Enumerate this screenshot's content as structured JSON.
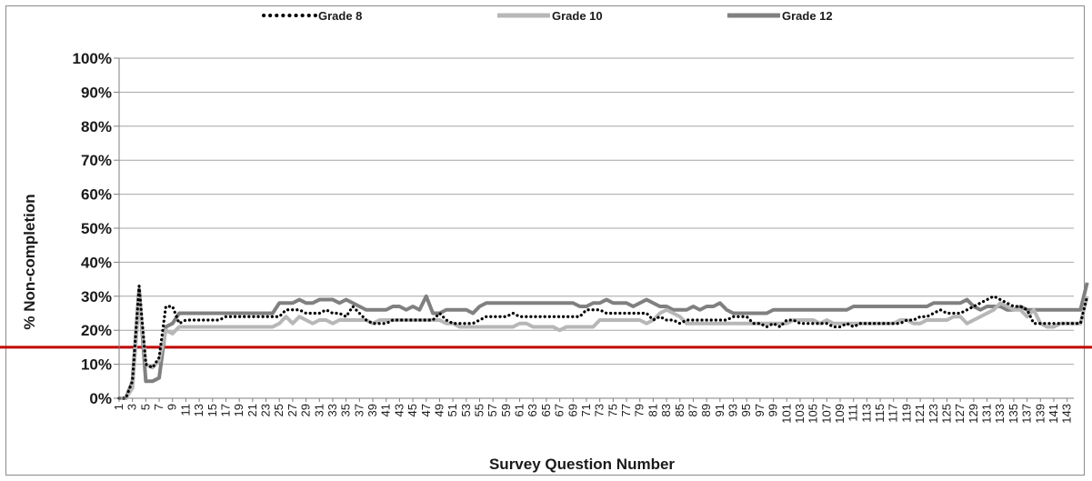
{
  "chart_data": {
    "type": "line",
    "title": "",
    "xlabel": "Survey Question Number",
    "ylabel": "% Non-completion",
    "ylim": [
      0,
      100
    ],
    "y_ticks": [
      "0%",
      "10%",
      "20%",
      "30%",
      "40%",
      "50%",
      "60%",
      "70%",
      "80%",
      "90%",
      "100%"
    ],
    "x_tick_labels": [
      1,
      3,
      5,
      7,
      9,
      11,
      13,
      15,
      17,
      19,
      21,
      23,
      25,
      27,
      29,
      31,
      33,
      35,
      37,
      39,
      41,
      43,
      45,
      47,
      49,
      51,
      53,
      55,
      57,
      59,
      61,
      63,
      65,
      67,
      69,
      71,
      73,
      75,
      77,
      79,
      81,
      83,
      85,
      87,
      89,
      91,
      93,
      95,
      97,
      99,
      101,
      103,
      105,
      107,
      109,
      111,
      113,
      115,
      117,
      119,
      121,
      123,
      125,
      127,
      129,
      131,
      133,
      135,
      137,
      139,
      141,
      143
    ],
    "x_range": [
      1,
      144
    ],
    "grid": "horizontal",
    "legend_position": "top",
    "reference_line": {
      "y": 15,
      "color": "#c00000"
    },
    "series": [
      {
        "name": "Grade 8",
        "color": "#000000",
        "style": "dotted",
        "values": [
          0,
          0,
          5,
          33,
          10,
          9,
          12,
          27,
          27,
          22,
          23,
          23,
          23,
          23,
          23,
          23,
          24,
          24,
          24,
          24,
          24,
          24,
          24,
          24,
          24,
          26,
          26,
          26,
          25,
          25,
          25,
          26,
          25,
          25,
          24,
          27,
          25,
          23,
          22,
          22,
          22,
          23,
          23,
          23,
          23,
          23,
          23,
          23,
          25,
          23,
          22,
          22,
          22,
          22,
          23,
          24,
          24,
          24,
          24,
          25,
          24,
          24,
          24,
          24,
          24,
          24,
          24,
          24,
          24,
          24,
          26,
          26,
          26,
          25,
          25,
          25,
          25,
          25,
          25,
          25,
          23,
          24,
          23,
          23,
          22,
          23,
          23,
          23,
          23,
          23,
          23,
          23,
          24,
          24,
          24,
          22,
          22,
          21,
          22,
          21,
          23,
          23,
          22,
          22,
          22,
          22,
          22,
          21,
          21,
          22,
          21,
          22,
          22,
          22,
          22,
          22,
          22,
          22,
          23,
          23,
          24,
          24,
          25,
          26,
          25,
          25,
          25,
          26,
          27,
          28,
          29,
          30,
          29,
          28,
          27,
          27,
          26,
          22,
          22,
          22,
          22,
          22,
          22,
          22,
          22,
          30
        ]
      },
      {
        "name": "Grade 10",
        "color": "#b7b7b7",
        "style": "solid",
        "values": [
          0,
          0,
          3,
          30,
          10,
          9,
          11,
          20,
          19,
          21,
          21,
          21,
          21,
          21,
          21,
          21,
          21,
          21,
          21,
          21,
          21,
          21,
          21,
          21,
          22,
          24,
          22,
          24,
          23,
          22,
          23,
          23,
          22,
          23,
          23,
          23,
          23,
          23,
          22,
          23,
          23,
          23,
          23,
          23,
          23,
          23,
          23,
          23,
          23,
          22,
          22,
          21,
          21,
          21,
          21,
          21,
          21,
          21,
          21,
          21,
          22,
          22,
          21,
          21,
          21,
          21,
          20,
          21,
          21,
          21,
          21,
          21,
          23,
          23,
          23,
          23,
          23,
          23,
          23,
          22,
          23,
          25,
          26,
          25,
          24,
          22,
          22,
          22,
          22,
          22,
          22,
          22,
          22,
          22,
          22,
          22,
          22,
          22,
          22,
          22,
          22,
          23,
          23,
          23,
          23,
          22,
          23,
          22,
          22,
          22,
          22,
          22,
          22,
          22,
          22,
          22,
          22,
          23,
          23,
          22,
          22,
          23,
          23,
          23,
          23,
          24,
          24,
          22,
          23,
          24,
          25,
          26,
          28,
          27,
          26,
          26,
          24,
          26,
          22,
          21,
          21,
          22,
          22,
          22,
          22,
          30
        ]
      },
      {
        "name": "Grade 12",
        "color": "#808080",
        "style": "solid",
        "values": [
          0,
          0,
          5,
          32,
          5,
          5,
          6,
          21,
          22,
          25,
          25,
          25,
          25,
          25,
          25,
          25,
          25,
          25,
          25,
          25,
          25,
          25,
          25,
          25,
          28,
          28,
          28,
          29,
          28,
          28,
          29,
          29,
          29,
          28,
          29,
          28,
          27,
          26,
          26,
          26,
          26,
          27,
          27,
          26,
          27,
          26,
          30,
          25,
          25,
          26,
          26,
          26,
          26,
          25,
          27,
          28,
          28,
          28,
          28,
          28,
          28,
          28,
          28,
          28,
          28,
          28,
          28,
          28,
          28,
          27,
          27,
          28,
          28,
          29,
          28,
          28,
          28,
          27,
          28,
          29,
          28,
          27,
          27,
          26,
          26,
          26,
          27,
          26,
          27,
          27,
          28,
          26,
          25,
          25,
          25,
          25,
          25,
          25,
          26,
          26,
          26,
          26,
          26,
          26,
          26,
          26,
          26,
          26,
          26,
          26,
          27,
          27,
          27,
          27,
          27,
          27,
          27,
          27,
          27,
          27,
          27,
          27,
          28,
          28,
          28,
          28,
          28,
          29,
          27,
          26,
          27,
          27,
          27,
          26,
          26,
          27,
          26,
          26,
          26,
          26,
          26,
          26,
          26,
          26,
          26,
          34
        ]
      }
    ]
  }
}
